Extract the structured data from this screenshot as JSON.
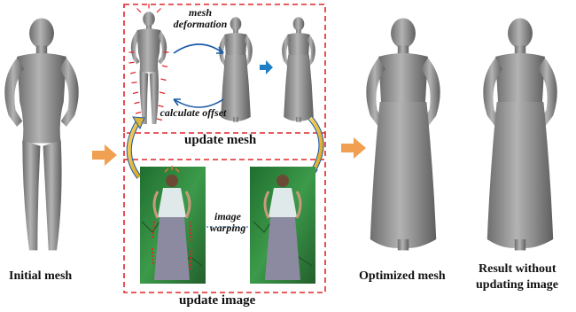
{
  "labels": {
    "initial": "Initial mesh",
    "update_mesh": "update mesh",
    "update_image": "update image",
    "optimized": "Optimized mesh",
    "result_line1": "Result without",
    "result_line2": "updating image",
    "mesh_deformation_1": "mesh",
    "mesh_deformation_2": "deformation",
    "calculate_offset": "calculate offset",
    "image_warping_1": "image",
    "image_warping_2": "warping"
  },
  "colors": {
    "dashed_box": "#e0262b",
    "orange_arrow": "#f0a050",
    "blue_arrow": "#1f7fc4",
    "curved_arrow": "#1a5aa8",
    "photo_green": "#2e8a3e",
    "mesh_gray": "#8f8f8f"
  },
  "icons": [
    "orange-right-arrow",
    "blue-right-arrow",
    "cycle-arrows",
    "curved-yellow-arrows"
  ]
}
